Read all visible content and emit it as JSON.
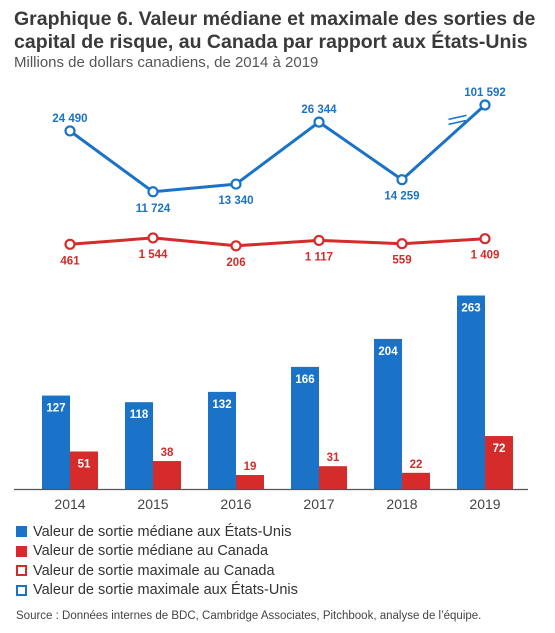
{
  "title": "Graphique 6. Valeur médiane et maximale des sorties de capital de risque, au Canada par rapport aux États-Unis",
  "subtitle": "Millions de dollars canadiens, de 2014 à 2019",
  "source": "Source : Données internes de BDC, Cambridge Associates, Pitchbook, analyse de l’équipe.",
  "colors": {
    "us": "#1a73c7",
    "canada": "#d52b2b",
    "axis": "#555555",
    "label_text_on_bar": "#ffffff"
  },
  "legend": [
    {
      "label": "Valeur de sortie médiane aux États-Unis",
      "style": "filled",
      "series": "us"
    },
    {
      "label": "Valeur de sortie médiane au Canada",
      "style": "filled",
      "series": "canada"
    },
    {
      "label": "Valeur de sortie maximale au Canada",
      "style": "outline",
      "series": "canada"
    },
    {
      "label": "Valeur de sortie maximale aux États-Unis",
      "style": "outline",
      "series": "us"
    }
  ],
  "chart_data": {
    "type": "bar",
    "categories": [
      "2014",
      "2015",
      "2016",
      "2017",
      "2018",
      "2019"
    ],
    "series": [
      {
        "name": "Valeur de sortie médiane aux États-Unis",
        "values": [
          127,
          118,
          132,
          166,
          204,
          263
        ],
        "labels": [
          "127",
          "118",
          "132",
          "166",
          "204",
          "263"
        ]
      },
      {
        "name": "Valeur de sortie médiane au Canada",
        "values": [
          51,
          38,
          19,
          31,
          22,
          72
        ],
        "labels": [
          "51",
          "38",
          "19",
          "31",
          "22",
          "72"
        ]
      }
    ],
    "line_series": [
      {
        "name": "Valeur de sortie maximale aux États-Unis",
        "values": [
          24490,
          11724,
          13340,
          26344,
          14259,
          101592
        ],
        "labels": [
          "24 490",
          "11 724",
          "13 340",
          "26 344",
          "14 259",
          "101 592"
        ],
        "axis_break_before_last": true
      },
      {
        "name": "Valeur de sortie maximale au Canada",
        "values": [
          461,
          1544,
          206,
          1117,
          559,
          1409
        ],
        "labels": [
          "461",
          "1 544",
          "206",
          "1 117",
          "559",
          "1 409"
        ]
      }
    ],
    "ylim": [
      0,
      280
    ],
    "grid": false,
    "legend_position": "bottom-left"
  }
}
